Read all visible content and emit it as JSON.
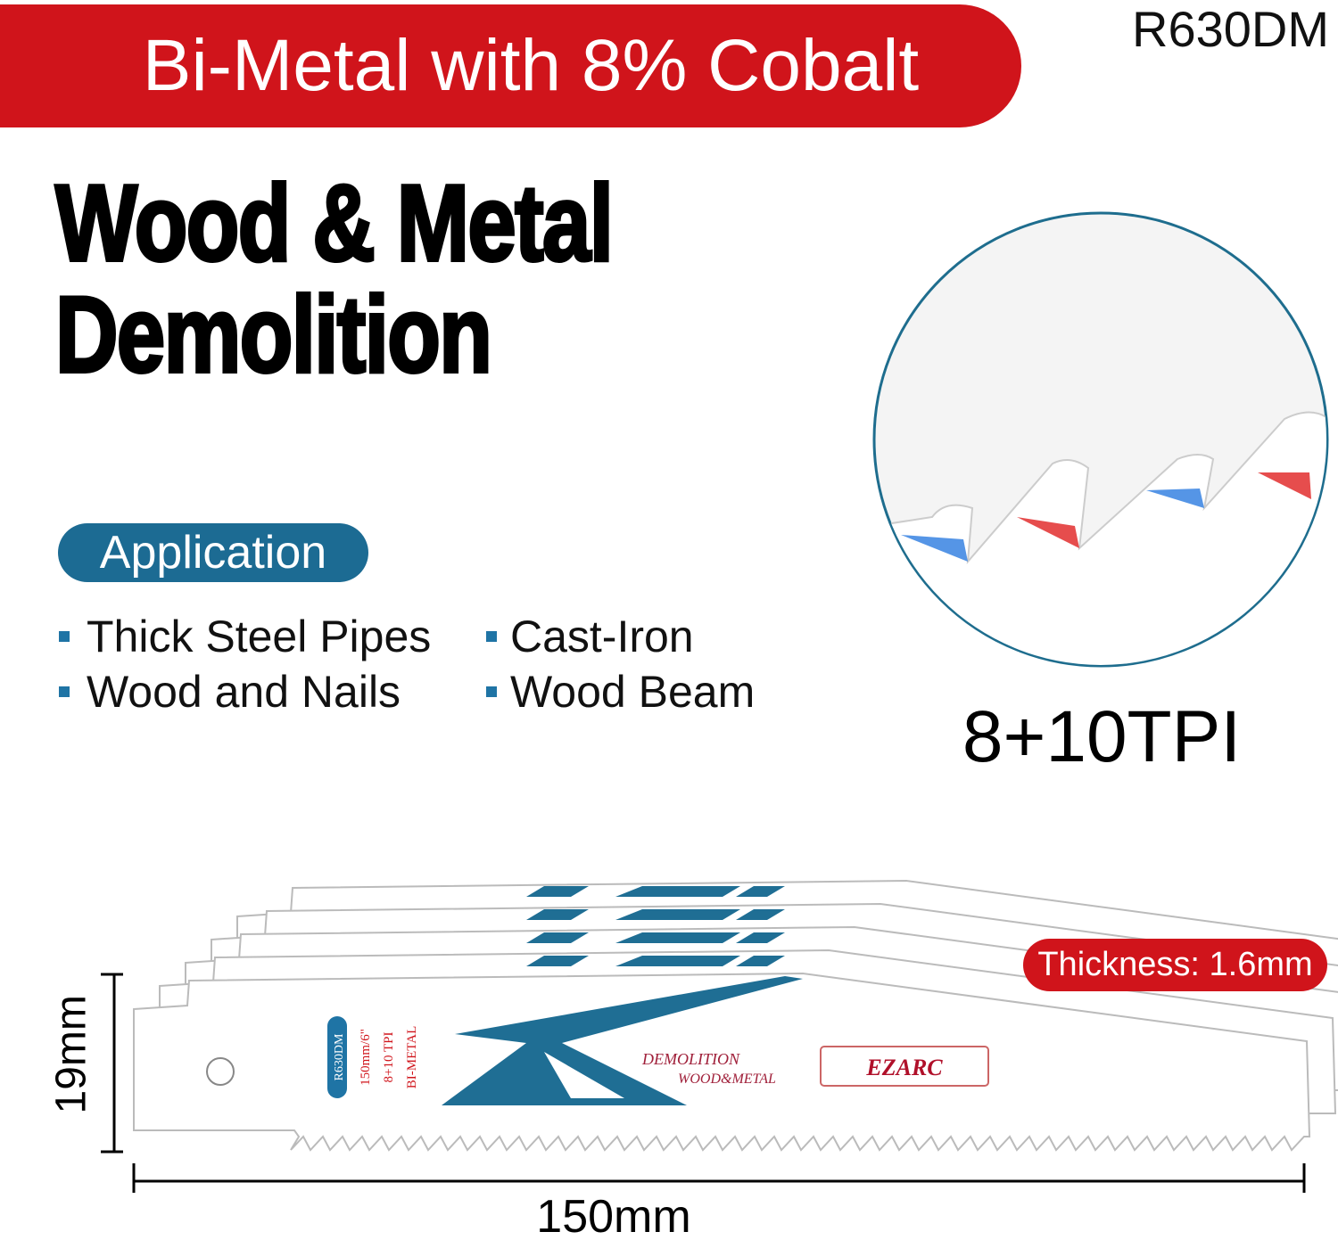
{
  "banner": {
    "title": "Bi-Metal with 8% Cobalt",
    "model": "R630DM"
  },
  "heading": {
    "lines": [
      "Wood & Metal",
      "Demolition"
    ]
  },
  "application": {
    "label": "Application",
    "items": [
      "Thick Steel Pipes",
      "Cast-Iron",
      "Wood and Nails",
      "Wood Beam"
    ]
  },
  "tpi": "8+10TPI",
  "blade": {
    "model": "R630DM",
    "size": "150mm/6\"",
    "tpi": "8+10 TPI",
    "material": "BI-METAL",
    "use_1": "DEMOLITION",
    "use_2": "WOOD&METAL",
    "brand": "EZARC"
  },
  "dimensions": {
    "thickness": "Thickness: 1.6mm",
    "height": "19mm",
    "length": "150mm"
  }
}
